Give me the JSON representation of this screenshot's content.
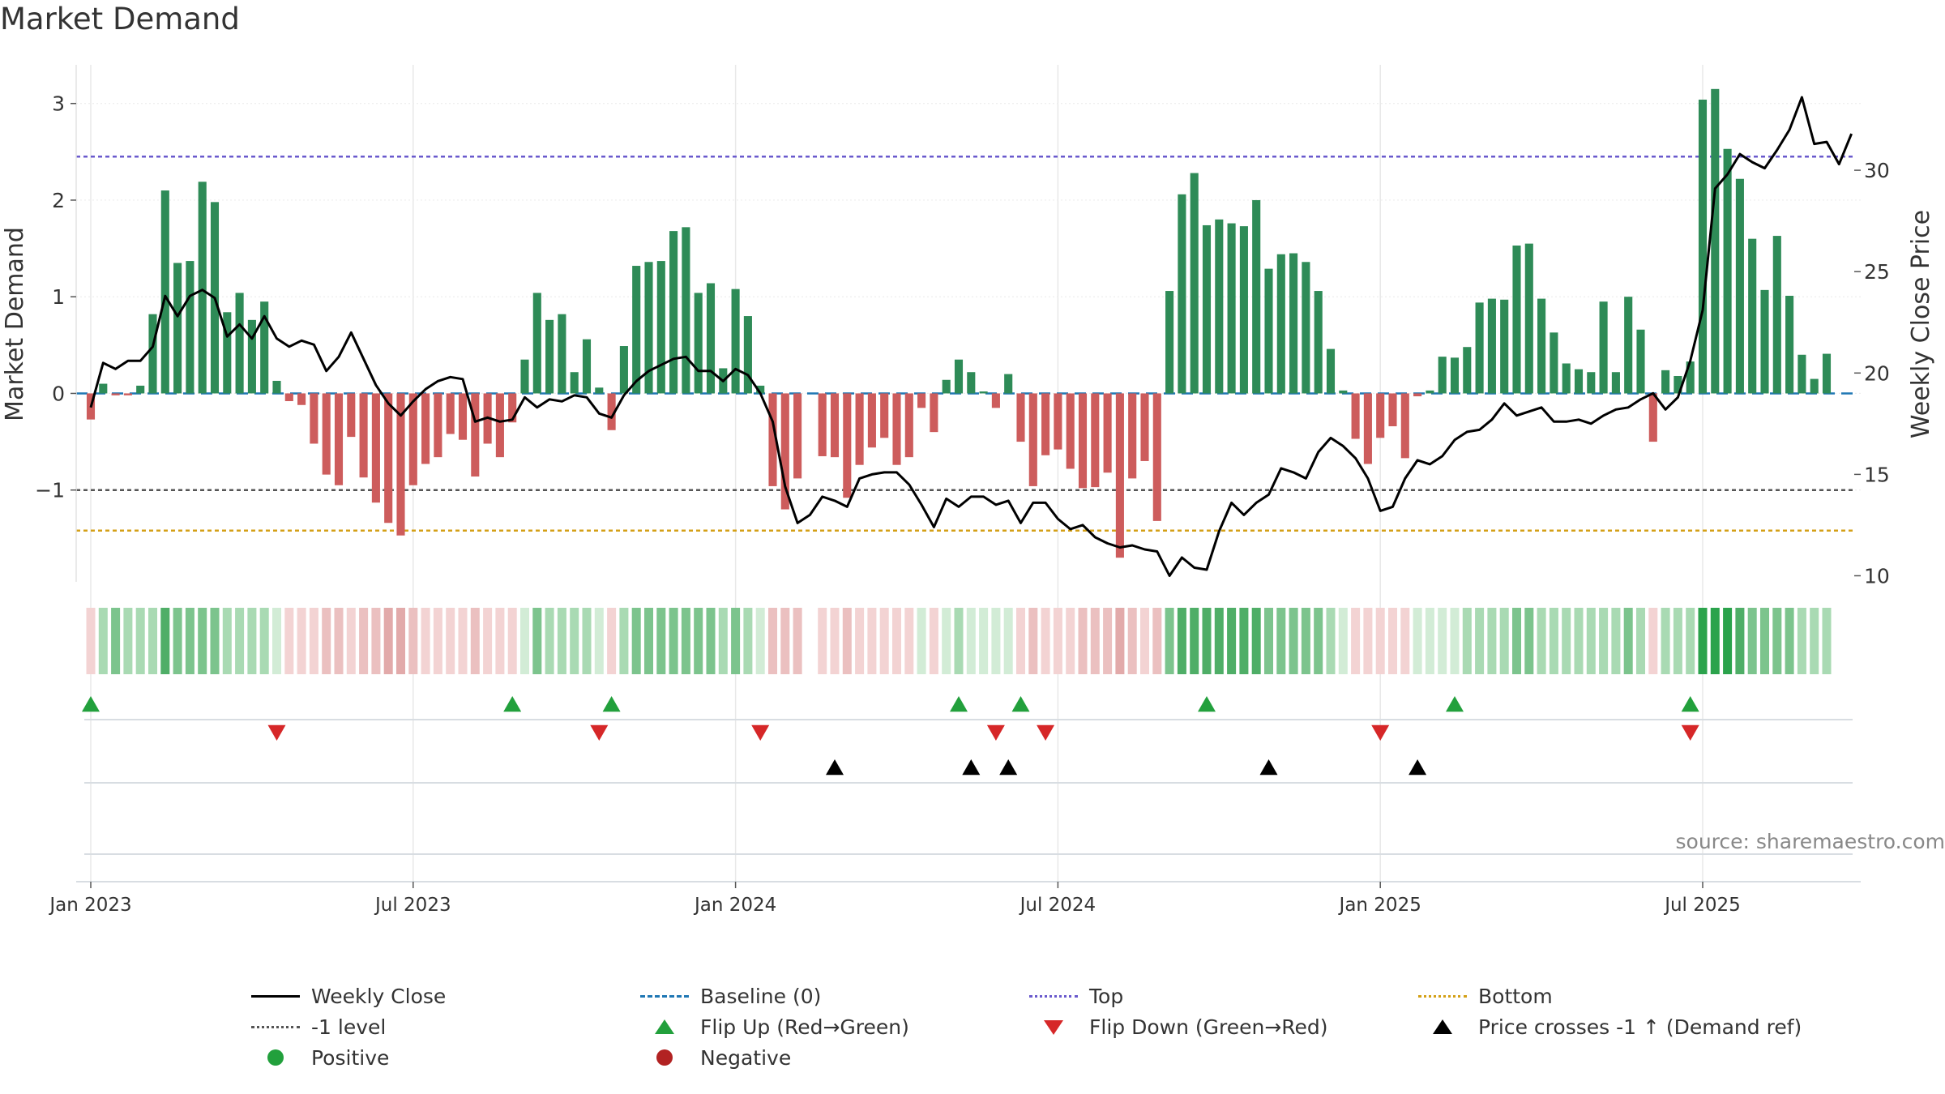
{
  "chart_data": {
    "type": "bar",
    "title": "Market Demand",
    "ylabel": "Market Demand",
    "y2label": "Weekly Close Price",
    "ylim": [
      -1.95,
      3.4
    ],
    "y2lim": [
      9.7,
      35.2
    ],
    "yticks": [
      -1,
      0,
      1,
      2,
      3
    ],
    "ytick_labels": [
      "−1",
      "0",
      "1",
      "2",
      "3"
    ],
    "y2ticks": [
      10,
      15,
      20,
      25,
      30
    ],
    "xtick_labels": [
      "Jan 2023",
      "Jul 2023",
      "Jan 2024",
      "Jul 2024",
      "Jan 2025",
      "Jul 2025"
    ],
    "xtick_weeks": [
      0,
      26,
      52,
      78,
      104,
      130
    ],
    "levels": {
      "top": 2.45,
      "bottom": -1.42,
      "minus_one": -1.0,
      "baseline": 0
    },
    "colors": {
      "positive": "#2e8b57",
      "negative": "#cd5c5c",
      "close": "#000000",
      "top": "#6a5acd",
      "bottom": "#d4a017",
      "minus_one": "#555555",
      "baseline": "#1f77b4",
      "flip_up": "#22a03c",
      "flip_down": "#d62728",
      "price_cross": "#000000"
    },
    "demand": [
      -0.27,
      0.1,
      -0.02,
      -0.02,
      0.08,
      0.82,
      2.1,
      1.35,
      1.37,
      2.19,
      1.98,
      0.84,
      1.04,
      0.76,
      0.95,
      0.13,
      -0.08,
      -0.12,
      -0.52,
      -0.84,
      -0.95,
      -0.45,
      -0.87,
      -1.13,
      -1.34,
      -1.47,
      -0.95,
      -0.73,
      -0.66,
      -0.42,
      -0.48,
      -0.86,
      -0.52,
      -0.66,
      -0.3,
      0.35,
      1.04,
      0.76,
      0.82,
      0.22,
      0.56,
      0.06,
      -0.38,
      0.49,
      1.32,
      1.36,
      1.37,
      1.68,
      1.72,
      1.04,
      1.14,
      0.26,
      1.08,
      0.8,
      0.08,
      -0.96,
      -1.2,
      -0.88,
      null,
      -0.65,
      -0.66,
      -1.08,
      -0.74,
      -0.56,
      -0.46,
      -0.74,
      -0.66,
      -0.15,
      -0.4,
      0.14,
      0.35,
      0.22,
      0.02,
      -0.15,
      0.2,
      -0.5,
      -0.96,
      -0.64,
      -0.58,
      -0.78,
      -0.98,
      -0.97,
      -0.82,
      -1.7,
      -0.88,
      -0.7,
      -1.32,
      1.06,
      2.06,
      2.28,
      1.74,
      1.8,
      1.76,
      1.73,
      2.0,
      1.29,
      1.44,
      1.45,
      1.36,
      1.06,
      0.46,
      0.03,
      -0.47,
      -0.73,
      -0.46,
      -0.34,
      -0.67,
      -0.03,
      0.03,
      0.38,
      0.37,
      0.48,
      0.94,
      0.98,
      0.97,
      1.53,
      1.55,
      0.98,
      0.63,
      0.31,
      0.25,
      0.22,
      0.95,
      0.22,
      1.0,
      0.66,
      -0.5,
      0.24,
      0.18,
      0.33,
      3.04,
      3.15,
      2.53,
      2.22,
      1.6,
      1.07,
      1.63,
      1.01,
      0.4,
      0.15,
      0.41
    ],
    "close": [
      18.3,
      20.5,
      20.2,
      20.6,
      20.6,
      21.3,
      23.8,
      22.8,
      23.8,
      24.1,
      23.7,
      21.8,
      22.4,
      21.7,
      22.8,
      21.7,
      21.3,
      21.6,
      21.4,
      20.1,
      20.8,
      22.0,
      20.7,
      19.4,
      18.5,
      17.9,
      18.6,
      19.2,
      19.6,
      19.8,
      19.7,
      17.6,
      17.8,
      17.6,
      17.7,
      18.8,
      18.3,
      18.7,
      18.6,
      18.9,
      18.8,
      18.0,
      17.8,
      18.9,
      19.6,
      20.1,
      20.4,
      20.7,
      20.8,
      20.1,
      20.1,
      19.6,
      20.2,
      19.9,
      19.0,
      17.6,
      14.4,
      12.6,
      13.0,
      13.9,
      13.7,
      13.4,
      14.8,
      15.0,
      15.1,
      15.1,
      14.5,
      13.5,
      12.4,
      13.8,
      13.4,
      13.9,
      13.9,
      13.5,
      13.7,
      12.6,
      13.6,
      13.6,
      12.8,
      12.3,
      12.5,
      11.9,
      11.6,
      11.4,
      11.5,
      11.3,
      11.2,
      10.0,
      10.9,
      10.4,
      10.3,
      12.2,
      13.6,
      13.0,
      13.6,
      14.0,
      15.3,
      15.1,
      14.8,
      16.1,
      16.8,
      16.4,
      15.8,
      14.8,
      13.2,
      13.4,
      14.8,
      15.7,
      15.5,
      15.9,
      16.7,
      17.1,
      17.2,
      17.7,
      18.5,
      17.9,
      18.1,
      18.3,
      17.6,
      17.6,
      17.7,
      17.5,
      17.9,
      18.2,
      18.3,
      18.7,
      19.0,
      18.2,
      18.8,
      20.6,
      23.1,
      29.1,
      29.8,
      30.8,
      30.4,
      30.1,
      31.0,
      32.0,
      33.6,
      31.3,
      31.4,
      30.3,
      31.8
    ],
    "status_strip": [
      -1,
      1,
      2,
      1,
      1,
      1,
      3,
      2,
      2,
      2,
      2,
      1,
      1,
      1,
      1,
      0,
      -1,
      -1,
      -1,
      -2,
      -2,
      -1,
      -2,
      -2,
      -3,
      -3,
      -2,
      -1,
      -1,
      -1,
      -1,
      -2,
      -1,
      -1,
      -1,
      0,
      2,
      1,
      1,
      1,
      1,
      0,
      -1,
      1,
      2,
      2,
      2,
      2,
      2,
      2,
      2,
      1,
      2,
      1,
      0,
      -2,
      -2,
      -2,
      null,
      -1,
      -1,
      -2,
      -1,
      -1,
      -1,
      -1,
      -1,
      0,
      -1,
      0,
      1,
      0,
      0,
      0,
      0,
      -1,
      -2,
      -1,
      -1,
      -1,
      -2,
      -2,
      -2,
      -3,
      -2,
      -1,
      -2,
      2,
      3,
      3,
      3,
      3,
      3,
      3,
      3,
      2,
      2,
      2,
      2,
      2,
      1,
      0,
      -1,
      -1,
      -1,
      -1,
      -1,
      0,
      0,
      0,
      0,
      1,
      1,
      1,
      1,
      2,
      2,
      1,
      1,
      1,
      1,
      1,
      1,
      1,
      2,
      1,
      -1,
      1,
      1,
      1,
      4,
      4,
      4,
      3,
      2,
      2,
      2,
      2,
      1,
      1,
      1
    ],
    "flip_up_weeks": [
      0,
      34,
      42,
      70,
      75,
      90,
      110,
      129
    ],
    "flip_down_weeks": [
      15,
      41,
      54,
      73,
      77,
      104,
      129
    ],
    "price_cross_weeks": [
      60,
      71,
      74,
      95,
      107
    ]
  },
  "legend": {
    "close": "Weekly Close",
    "baseline": "Baseline (0)",
    "top": "Top",
    "bottom": "Bottom",
    "minus_one": "-1 level",
    "flip_up": "Flip Up (Red→Green)",
    "flip_down": "Flip Down (Green→Red)",
    "price_cross": "Price crosses -1 ↑ (Demand ref)",
    "positive": "Positive",
    "negative": "Negative"
  },
  "source": "source: sharemaestro.com"
}
